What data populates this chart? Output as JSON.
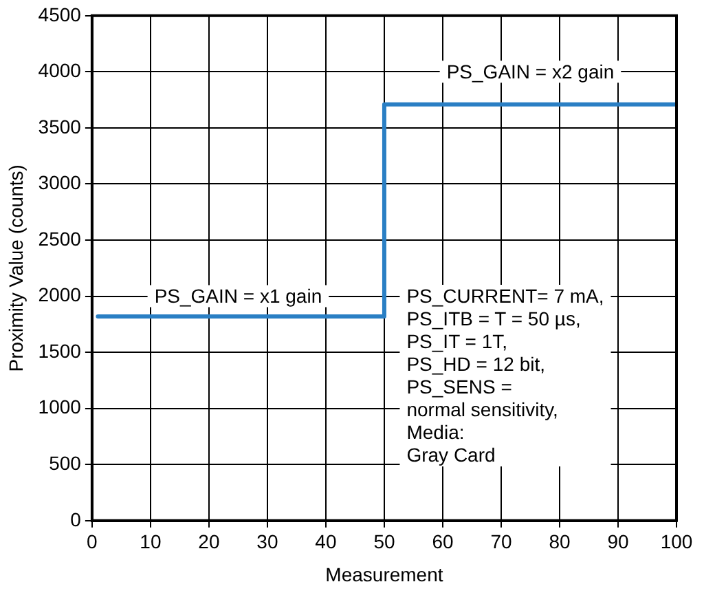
{
  "chart_data": {
    "type": "line",
    "xlabel": "Measurement",
    "ylabel": "Proximity Value (counts)",
    "x": [
      1,
      50,
      50,
      100
    ],
    "series": [
      {
        "color": "#2a7fc4",
        "values": [
          1820,
          1820,
          3710,
          3710
        ]
      }
    ],
    "xlim": [
      0,
      100
    ],
    "xticks": [
      0,
      10,
      20,
      30,
      40,
      50,
      60,
      70,
      80,
      90,
      100
    ],
    "ylim": [
      0,
      4500
    ],
    "yticks": [
      0,
      500,
      1000,
      1500,
      2000,
      2500,
      3000,
      3500,
      4000,
      4500
    ],
    "grid": true,
    "marker": "none",
    "line_style": "solid",
    "annotations": [
      "PS_GAIN = x1 gain",
      "PS_GAIN = x2 gain",
      "PS_CURRENT= 7 mA,\nPS_ITB = T = 50 µs,\nPS_IT = 1T,\nPS_HD = 12 bit,\nPS_SENS =\nnormal sensitivity,\nMedia:\nGray Card"
    ]
  }
}
